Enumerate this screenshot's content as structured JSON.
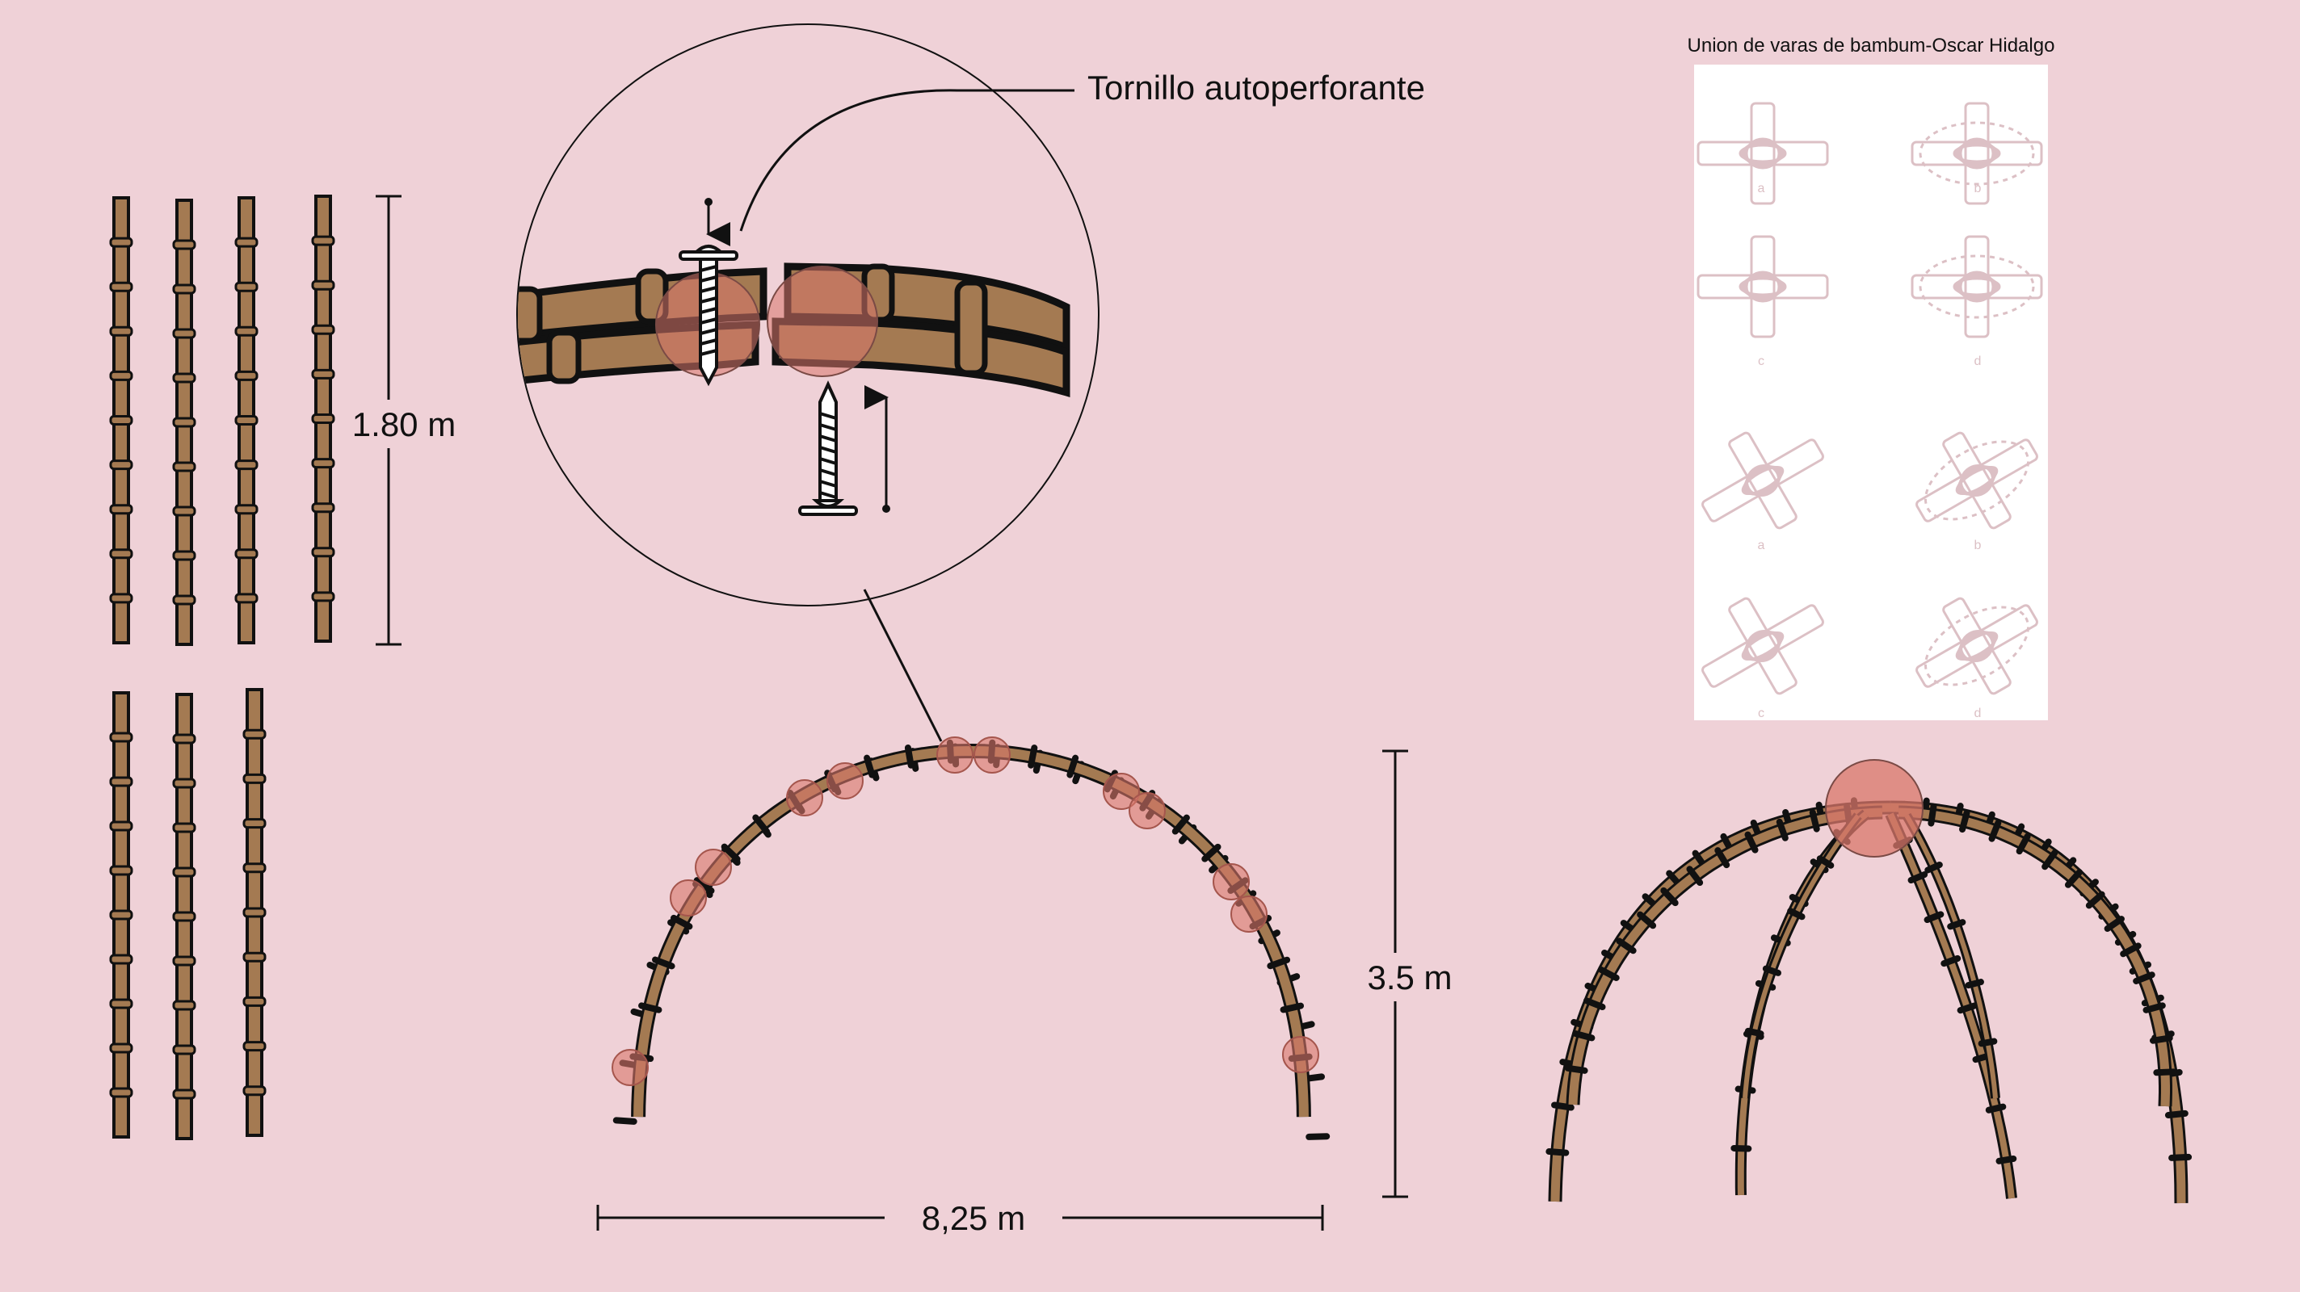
{
  "labels": {
    "screw_callout": "Tornillo autoperforante",
    "rod_length": "1.80 m",
    "arch_height": "3.5 m",
    "arch_span": "8,25 m",
    "reference_title": "Union de varas de bambum-Oscar Hidalgo"
  },
  "reference_panel": {
    "captions": [
      "a",
      "b",
      "c",
      "d",
      "a",
      "b",
      "c",
      "d"
    ]
  },
  "colors": {
    "background": "#efd1d7",
    "bamboo": "#a47a52",
    "outline": "#111111",
    "joint_highlight": "#d9776b",
    "panel": "#ffffff",
    "sketch": "#dcc0c5"
  }
}
